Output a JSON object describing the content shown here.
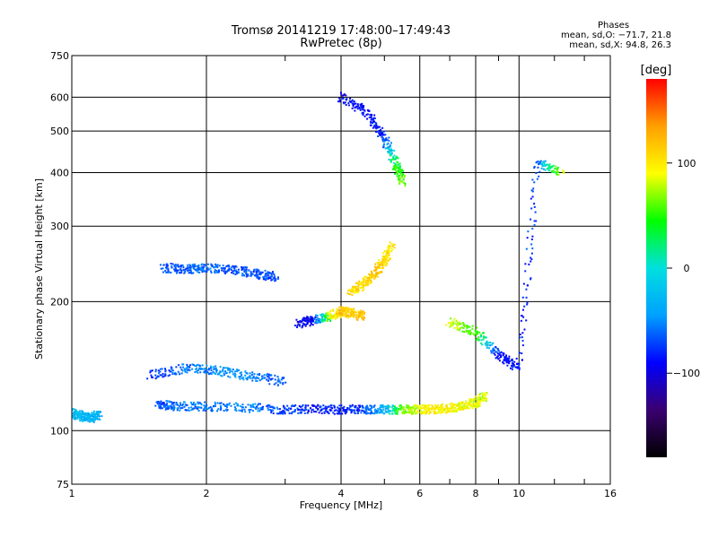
{
  "title_line1": "Tromsø 20141219 17:48:00–17:49:43",
  "title_line2": "RwPretec (8p)",
  "phases": {
    "heading": "Phases",
    "line_o": "mean, sd,O: −71.7, 21.8",
    "line_x": "mean, sd,X:  94.8, 26.3"
  },
  "colorbar": {
    "label": "[deg]",
    "ticks": [
      "100",
      "0",
      "−100"
    ],
    "stops": [
      "#000000",
      "#3a0070",
      "#0000ff",
      "#00a0ff",
      "#00e0e0",
      "#00ff00",
      "#ffff00",
      "#ffa000",
      "#ff0000"
    ]
  },
  "chart_data": {
    "type": "scatter",
    "title": "Tromsø 20141219 17:48:00–17:49:43 RwPretec (8p)",
    "xlabel": "Frequency [MHz]",
    "ylabel": "Stationary phase Virtual Height [km]",
    "x_scale": "log",
    "y_scale": "log",
    "xlim": [
      1,
      16
    ],
    "ylim": [
      75,
      750
    ],
    "x_ticks": [
      "1",
      "2",
      "4",
      "6",
      "8",
      "10",
      "16"
    ],
    "y_ticks": [
      "75",
      "100",
      "200",
      "300",
      "400",
      "500",
      "600",
      "750"
    ],
    "grid": true,
    "colorbar_label": "[deg]",
    "colorbar_range": [
      -180,
      180
    ],
    "colorbar_ticks": [
      100,
      0,
      -100
    ],
    "traces": [
      {
        "name_hint": "E-region trace",
        "x": [
          1.55,
          1.7,
          2.0,
          2.5,
          3.0,
          3.5,
          4.0,
          4.5,
          5.0,
          5.5,
          6.0,
          6.5,
          7.0,
          7.5,
          8.0,
          8.4
        ],
        "y": [
          115,
          114,
          114,
          113,
          112,
          112,
          112,
          112,
          112,
          112,
          112,
          112,
          113,
          114,
          116,
          121
        ],
        "phase": [
          -70,
          -60,
          -55,
          -50,
          -75,
          -80,
          -85,
          -75,
          -40,
          60,
          90,
          100,
          95,
          90,
          85,
          80
        ]
      },
      {
        "name_hint": "E-region second trace",
        "x": [
          1.5,
          1.8,
          2.1,
          2.5,
          3.0
        ],
        "y": [
          135,
          140,
          138,
          134,
          130
        ],
        "phase": [
          -80,
          -60,
          -50,
          -55,
          -70
        ]
      },
      {
        "name_hint": "Es low-frequency patch",
        "x": [
          1.0,
          1.05,
          1.1,
          1.15
        ],
        "y": [
          110,
          108,
          107,
          109
        ],
        "phase": [
          -30,
          -25,
          -35,
          -30
        ]
      },
      {
        "name_hint": "Layer band ~240 km",
        "x": [
          1.6,
          1.8,
          2.0,
          2.3,
          2.6,
          2.9
        ],
        "y": [
          240,
          238,
          240,
          237,
          232,
          228
        ],
        "phase": [
          -70,
          -65,
          -60,
          -65,
          -70,
          -75
        ]
      },
      {
        "name_hint": "Band ~180 km",
        "x": [
          3.2,
          3.5,
          3.8,
          4.0,
          4.2,
          4.5
        ],
        "y": [
          178,
          181,
          185,
          190,
          188,
          185
        ],
        "phase": [
          -95,
          -90,
          80,
          120,
          110,
          120
        ]
      },
      {
        "name_hint": "F-region oblique trace",
        "x": [
          4.2,
          4.5,
          4.8,
          5.0,
          5.2
        ],
        "y": [
          210,
          220,
          235,
          250,
          270
        ],
        "phase": [
          100,
          110,
          115,
          110,
          100
        ]
      },
      {
        "name_hint": "High spread",
        "x": [
          4.0,
          4.6,
          5.0,
          5.3,
          5.5
        ],
        "y": [
          600,
          550,
          480,
          420,
          380
        ],
        "phase": [
          -95,
          -90,
          -85,
          40,
          60
        ]
      },
      {
        "name_hint": "Sparse high-frequency",
        "x": [
          7.0,
          8.0,
          9.0,
          10.0,
          11.0,
          12.5
        ],
        "y": [
          180,
          170,
          150,
          140,
          420,
          400
        ],
        "phase": [
          80,
          60,
          -90,
          -80,
          -70,
          90
        ]
      }
    ]
  }
}
